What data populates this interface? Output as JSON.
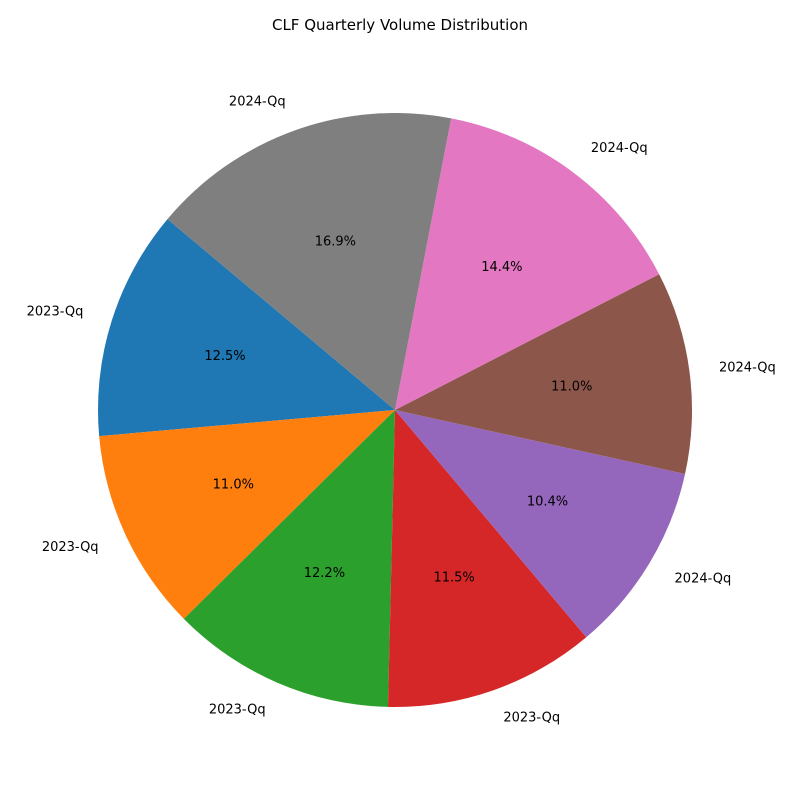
{
  "chart_data": {
    "type": "pie",
    "title": "CLF Quarterly Volume Distribution",
    "start_angle_deg": 140,
    "direction": "counterclockwise",
    "slices": [
      {
        "label": "2023-Qq",
        "value": 12.5,
        "display": "12.5%",
        "color": "#1f77b4"
      },
      {
        "label": "2023-Qq",
        "value": 11.0,
        "display": "11.0%",
        "color": "#ff7f0e"
      },
      {
        "label": "2023-Qq",
        "value": 12.2,
        "display": "12.2%",
        "color": "#2ca02c"
      },
      {
        "label": "2023-Qq",
        "value": 11.5,
        "display": "11.5%",
        "color": "#d62728"
      },
      {
        "label": "2024-Qq",
        "value": 10.4,
        "display": "10.4%",
        "color": "#9467bd"
      },
      {
        "label": "2024-Qq",
        "value": 11.0,
        "display": "11.0%",
        "color": "#8c564b"
      },
      {
        "label": "2024-Qq",
        "value": 14.4,
        "display": "14.4%",
        "color": "#e377c2"
      },
      {
        "label": "2024-Qq",
        "value": 16.9,
        "display": "16.9%",
        "color": "#7f7f7f"
      }
    ]
  }
}
